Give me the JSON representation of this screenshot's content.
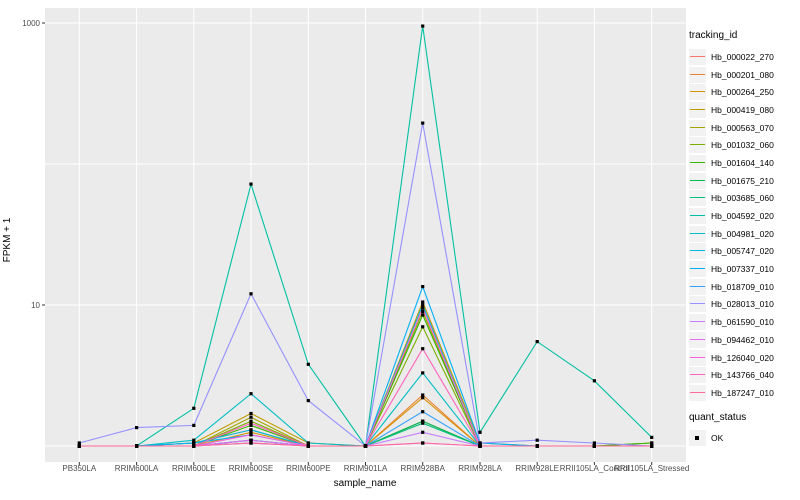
{
  "figure": {
    "background": "#FFFFFF",
    "panel_bg": "#EBEBEB",
    "grid_color": "#FFFFFF",
    "tick_mark_color": "#333333",
    "tick_label_color": "#4D4D4D",
    "y_axis_title": "FPKM + 1",
    "x_axis_title": "sample_name",
    "legend": {
      "tracking_title": "tracking_id",
      "quant_title": "quant_status",
      "quant_label": "OK",
      "key_bg": "#F2F2F2",
      "point_color": "#000000"
    }
  },
  "chart_data": {
    "type": "line",
    "title": "",
    "xlabel": "sample_name",
    "ylabel": "FPKM + 1",
    "yscale": "log10",
    "ylim": [
      0.93,
      1300
    ],
    "yticks": [
      {
        "value": 1000,
        "label": "1000"
      },
      {
        "value": 10,
        "label": "10"
      }
    ],
    "gridlines_y": [
      1,
      10,
      100,
      1000
    ],
    "grid": true,
    "legend_position": "right",
    "point_marker": {
      "color": "#000000",
      "meaning": "quant_status OK"
    },
    "categories": [
      "PB350LA",
      "RRIM600LA",
      "RRIM600LE",
      "RRIM600SE",
      "RRIM600PE",
      "RRIM901LA",
      "RRIM928BA",
      "RRIM928LA",
      "RRIM928LE",
      "RRII105LA_Control",
      "RRII105LA_Stressed"
    ],
    "series": [
      {
        "name": "Hb_000022_270",
        "color": "#F8766D",
        "values": [
          1,
          1,
          1,
          1.05,
          1,
          1,
          1.5,
          1,
          1,
          1,
          1
        ]
      },
      {
        "name": "Hb_000201_080",
        "color": "#EA8331",
        "values": [
          1,
          1,
          1.05,
          1.3,
          1,
          1,
          2.3,
          1,
          1,
          1,
          1
        ]
      },
      {
        "name": "Hb_000264_250",
        "color": "#D89000",
        "values": [
          1,
          1,
          1,
          1.25,
          1,
          1,
          2.2,
          1,
          1,
          1,
          1
        ]
      },
      {
        "name": "Hb_000419_080",
        "color": "#C09B00",
        "values": [
          1,
          1,
          1.05,
          1.7,
          1.05,
          1,
          10.5,
          1.05,
          1,
          1,
          1
        ]
      },
      {
        "name": "Hb_000563_070",
        "color": "#A3A500",
        "values": [
          1,
          1,
          1,
          1.6,
          1,
          1,
          9,
          1,
          1,
          1,
          1
        ]
      },
      {
        "name": "Hb_001032_060",
        "color": "#7CAE00",
        "values": [
          1,
          1,
          1,
          1.5,
          1,
          1,
          7,
          1,
          1,
          1,
          1.05
        ]
      },
      {
        "name": "Hb_001604_140",
        "color": "#39B600",
        "values": [
          1,
          1,
          1,
          1.4,
          1,
          1,
          8.5,
          1,
          1,
          1,
          1.05
        ]
      },
      {
        "name": "Hb_001675_210",
        "color": "#00BB4E",
        "values": [
          1,
          1,
          1,
          1.1,
          1,
          1,
          1.5,
          1,
          1,
          1,
          1
        ]
      },
      {
        "name": "Hb_003685_060",
        "color": "#00BF7D",
        "values": [
          1,
          1,
          1,
          1.1,
          1,
          1,
          1.45,
          1,
          1,
          1,
          1
        ]
      },
      {
        "name": "Hb_004592_020",
        "color": "#00C1A3",
        "values": [
          1,
          1,
          1.85,
          72,
          3.8,
          1,
          950,
          1.25,
          5.5,
          2.9,
          1.15
        ]
      },
      {
        "name": "Hb_004981_020",
        "color": "#00BFC4",
        "values": [
          1,
          1,
          1.1,
          2.35,
          1.05,
          1,
          3.3,
          1,
          1,
          1,
          1
        ]
      },
      {
        "name": "Hb_005747_020",
        "color": "#00BAE0",
        "values": [
          1,
          1,
          1.05,
          1.3,
          1,
          1,
          10,
          1,
          1,
          1,
          1
        ]
      },
      {
        "name": "Hb_007337_010",
        "color": "#00B0F6",
        "values": [
          1,
          1,
          1.05,
          1.2,
          1,
          1,
          13.5,
          1.05,
          1,
          1,
          1
        ]
      },
      {
        "name": "Hb_018709_010",
        "color": "#35A2FF",
        "values": [
          1,
          1,
          1,
          1.1,
          1,
          1,
          1.75,
          1,
          1,
          1,
          1
        ]
      },
      {
        "name": "Hb_028013_010",
        "color": "#9590FF",
        "values": [
          1.05,
          1.35,
          1.4,
          12,
          2.1,
          1,
          195,
          1.05,
          1.1,
          1.05,
          1
        ]
      },
      {
        "name": "Hb_061590_010",
        "color": "#C77CFF",
        "values": [
          1,
          1,
          1,
          1.05,
          1,
          1,
          1.25,
          1,
          1,
          1,
          1
        ]
      },
      {
        "name": "Hb_094462_010",
        "color": "#E76BF3",
        "values": [
          1,
          1,
          1,
          1.1,
          1,
          1,
          1.05,
          1,
          1,
          1,
          1
        ]
      },
      {
        "name": "Hb_126040_020",
        "color": "#FA62DB",
        "values": [
          1,
          1,
          1,
          1.2,
          1,
          1,
          9.5,
          1,
          1,
          1,
          1
        ]
      },
      {
        "name": "Hb_143766_040",
        "color": "#FF62BC",
        "values": [
          1,
          1,
          1,
          1.45,
          1,
          1,
          4.9,
          1,
          1,
          1,
          1
        ]
      },
      {
        "name": "Hb_187247_010",
        "color": "#FF6A98",
        "values": [
          1,
          1,
          1,
          1.05,
          1,
          1,
          1.05,
          1,
          1,
          1,
          1
        ]
      }
    ]
  }
}
